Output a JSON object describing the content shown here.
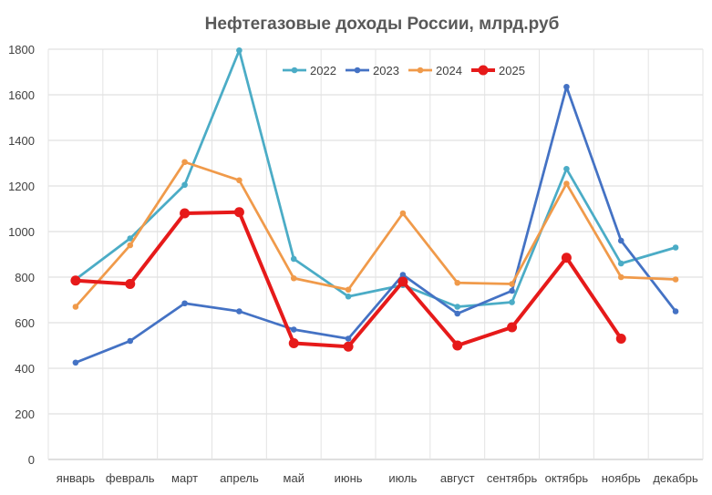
{
  "chart_data": {
    "type": "line",
    "title": "Нефтегазовые доходы России, млрд.руб",
    "xlabel": "",
    "ylabel": "",
    "categories": [
      "январь",
      "февраль",
      "март",
      "апрель",
      "май",
      "июнь",
      "июль",
      "август",
      "сентябрь",
      "октябрь",
      "ноябрь",
      "декабрь"
    ],
    "ylim": [
      0,
      1800
    ],
    "yticks": [
      0,
      200,
      400,
      600,
      800,
      1000,
      1200,
      1400,
      1600,
      1800
    ],
    "grid": true,
    "legend_position": "top-center",
    "series": [
      {
        "name": "2022",
        "color": "#4BACC6",
        "thick": false,
        "values": [
          790,
          970,
          1205,
          1795,
          880,
          715,
          765,
          670,
          690,
          1275,
          860,
          930
        ]
      },
      {
        "name": "2023",
        "color": "#4472C4",
        "thick": false,
        "values": [
          425,
          520,
          685,
          650,
          570,
          530,
          810,
          640,
          740,
          1635,
          960,
          650
        ]
      },
      {
        "name": "2024",
        "color": "#F09A4A",
        "thick": false,
        "values": [
          670,
          940,
          1305,
          1225,
          795,
          745,
          1080,
          775,
          770,
          1210,
          800,
          790
        ]
      },
      {
        "name": "2025",
        "color": "#E61A1A",
        "thick": true,
        "values": [
          785,
          770,
          1080,
          1085,
          510,
          495,
          780,
          500,
          580,
          885,
          530,
          null
        ]
      }
    ]
  }
}
